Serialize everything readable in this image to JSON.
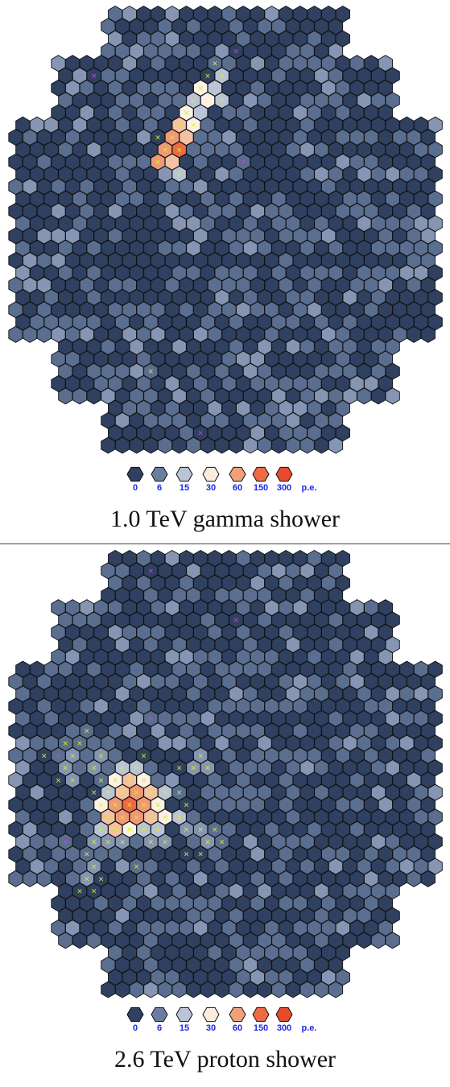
{
  "colors": {
    "scale": [
      "#2f4060",
      "#5a6e90",
      "#8595b3",
      "#b9c4d6",
      "#fbf1e5",
      "#f4c2a3",
      "#ef9a74",
      "#ee6a44",
      "#e84a2c"
    ],
    "cell_stroke": "#111111",
    "mark_green": "#d8f02a",
    "mark_magenta": "#d040e0"
  },
  "panels": [
    {
      "title": "1.0 TeV gamma shower",
      "legend": {
        "labels": [
          "0",
          "6",
          "15",
          "30",
          "60",
          "150",
          "300"
        ],
        "unit": "p.e.",
        "swatch_colors": [
          "#2f4060",
          "#6a7fa0",
          "#b9c4d6",
          "#fbecdf",
          "#f0a07a",
          "#ee6a44",
          "#e84a2c"
        ]
      },
      "hotspots": [
        {
          "q": 14,
          "r": 5,
          "level": 3
        },
        {
          "q": 13,
          "r": 6,
          "level": 4
        },
        {
          "q": 14,
          "r": 6,
          "level": 3
        },
        {
          "q": 12,
          "r": 7,
          "level": 3
        },
        {
          "q": 13,
          "r": 7,
          "level": 4
        },
        {
          "q": 14,
          "r": 7,
          "level": 3
        },
        {
          "q": 12,
          "r": 8,
          "level": 4
        },
        {
          "q": 13,
          "r": 8,
          "level": 3
        },
        {
          "q": 11,
          "r": 9,
          "level": 5
        },
        {
          "q": 12,
          "r": 9,
          "level": 4
        },
        {
          "q": 11,
          "r": 10,
          "level": 6
        },
        {
          "q": 12,
          "r": 10,
          "level": 5
        },
        {
          "q": 10,
          "r": 11,
          "level": 6
        },
        {
          "q": 11,
          "r": 11,
          "level": 7
        },
        {
          "q": 10,
          "r": 12,
          "level": 6
        },
        {
          "q": 11,
          "r": 12,
          "level": 5
        },
        {
          "q": 11,
          "r": 13,
          "level": 3
        }
      ],
      "marks_green": [
        [
          14,
          4
        ],
        [
          13,
          5
        ],
        [
          14,
          5
        ],
        [
          13,
          6
        ],
        [
          12,
          7
        ],
        [
          14,
          7
        ],
        [
          12,
          8
        ],
        [
          11,
          9
        ],
        [
          12,
          9
        ],
        [
          10,
          10
        ],
        [
          11,
          10
        ],
        [
          10,
          11
        ],
        [
          11,
          11
        ],
        [
          10,
          12
        ],
        [
          11,
          13
        ],
        [
          9,
          29
        ]
      ],
      "marks_magenta": [
        [
          5,
          5
        ],
        [
          15,
          3
        ],
        [
          16,
          12
        ],
        [
          13,
          34
        ]
      ]
    },
    {
      "title": "2.6 TeV proton shower",
      "legend": {
        "labels": [
          "0",
          "6",
          "15",
          "30",
          "60",
          "150",
          "300"
        ],
        "unit": "p.e.",
        "swatch_colors": [
          "#2f4060",
          "#6a7fa0",
          "#b9c4d6",
          "#fbecdf",
          "#f0a07a",
          "#ee6a44",
          "#e84a2c"
        ]
      },
      "hotspots": [
        {
          "q": 7,
          "r": 17,
          "level": 3
        },
        {
          "q": 8,
          "r": 17,
          "level": 3
        },
        {
          "q": 7,
          "r": 18,
          "level": 4
        },
        {
          "q": 8,
          "r": 18,
          "level": 5
        },
        {
          "q": 9,
          "r": 18,
          "level": 4
        },
        {
          "q": 6,
          "r": 19,
          "level": 3
        },
        {
          "q": 7,
          "r": 19,
          "level": 5
        },
        {
          "q": 8,
          "r": 19,
          "level": 6
        },
        {
          "q": 9,
          "r": 19,
          "level": 5
        },
        {
          "q": 10,
          "r": 19,
          "level": 3
        },
        {
          "q": 6,
          "r": 20,
          "level": 4
        },
        {
          "q": 7,
          "r": 20,
          "level": 6
        },
        {
          "q": 8,
          "r": 20,
          "level": 7
        },
        {
          "q": 9,
          "r": 20,
          "level": 6
        },
        {
          "q": 10,
          "r": 20,
          "level": 4
        },
        {
          "q": 6,
          "r": 21,
          "level": 5
        },
        {
          "q": 7,
          "r": 21,
          "level": 6
        },
        {
          "q": 8,
          "r": 21,
          "level": 6
        },
        {
          "q": 9,
          "r": 21,
          "level": 5
        },
        {
          "q": 10,
          "r": 21,
          "level": 4
        },
        {
          "q": 11,
          "r": 21,
          "level": 3
        },
        {
          "q": 6,
          "r": 22,
          "level": 3
        },
        {
          "q": 7,
          "r": 22,
          "level": 5
        },
        {
          "q": 8,
          "r": 22,
          "level": 4
        },
        {
          "q": 9,
          "r": 22,
          "level": 3
        },
        {
          "q": 10,
          "r": 22,
          "level": 3
        },
        {
          "q": 6,
          "r": 16,
          "level": 2
        },
        {
          "q": 5,
          "r": 17,
          "level": 2
        },
        {
          "q": 11,
          "r": 18,
          "level": 2
        },
        {
          "q": 12,
          "r": 17,
          "level": 2
        },
        {
          "q": 13,
          "r": 16,
          "level": 2
        },
        {
          "q": 13,
          "r": 17,
          "level": 2
        },
        {
          "q": 5,
          "r": 23,
          "level": 2
        },
        {
          "q": 6,
          "r": 23,
          "level": 2
        },
        {
          "q": 7,
          "r": 23,
          "level": 2
        },
        {
          "q": 9,
          "r": 23,
          "level": 2
        },
        {
          "q": 10,
          "r": 23,
          "level": 2
        },
        {
          "q": 12,
          "r": 22,
          "level": 2
        },
        {
          "q": 13,
          "r": 22,
          "level": 2
        },
        {
          "q": 13,
          "r": 23,
          "level": 2
        },
        {
          "q": 4,
          "r": 16,
          "level": 2
        },
        {
          "q": 4,
          "r": 18,
          "level": 2
        },
        {
          "q": 3,
          "r": 17,
          "level": 2
        },
        {
          "q": 5,
          "r": 25,
          "level": 2
        },
        {
          "q": 5,
          "r": 26,
          "level": 2
        }
      ],
      "marks_green": [
        [
          7,
          17
        ],
        [
          8,
          17
        ],
        [
          7,
          18
        ],
        [
          8,
          18
        ],
        [
          9,
          18
        ],
        [
          6,
          19
        ],
        [
          7,
          19
        ],
        [
          8,
          19
        ],
        [
          9,
          19
        ],
        [
          10,
          19
        ],
        [
          6,
          20
        ],
        [
          7,
          20
        ],
        [
          8,
          20
        ],
        [
          9,
          20
        ],
        [
          10,
          20
        ],
        [
          6,
          21
        ],
        [
          7,
          21
        ],
        [
          8,
          21
        ],
        [
          9,
          21
        ],
        [
          10,
          21
        ],
        [
          11,
          21
        ],
        [
          6,
          22
        ],
        [
          7,
          22
        ],
        [
          8,
          22
        ],
        [
          9,
          22
        ],
        [
          10,
          22
        ],
        [
          5,
          23
        ],
        [
          6,
          23
        ],
        [
          7,
          23
        ],
        [
          9,
          23
        ],
        [
          10,
          23
        ],
        [
          12,
          22
        ],
        [
          13,
          22
        ],
        [
          13,
          23
        ],
        [
          14,
          22
        ],
        [
          14,
          23
        ],
        [
          5,
          24
        ],
        [
          5,
          25
        ],
        [
          5,
          26
        ],
        [
          5,
          27
        ],
        [
          4,
          27
        ],
        [
          6,
          26
        ],
        [
          8,
          25
        ],
        [
          12,
          24
        ],
        [
          13,
          24
        ],
        [
          11,
          17
        ],
        [
          12,
          17
        ],
        [
          13,
          16
        ],
        [
          13,
          17
        ],
        [
          6,
          16
        ],
        [
          5,
          17
        ],
        [
          4,
          15
        ],
        [
          4,
          16
        ],
        [
          4,
          18
        ],
        [
          3,
          17
        ],
        [
          3,
          15
        ],
        [
          5,
          14
        ],
        [
          5,
          19
        ],
        [
          6,
          18
        ],
        [
          3,
          18
        ],
        [
          2,
          16
        ],
        [
          9,
          16
        ],
        [
          11,
          19
        ],
        [
          12,
          20
        ]
      ],
      "marks_magenta": [
        [
          9,
          1
        ],
        [
          15,
          5
        ],
        [
          3,
          16
        ],
        [
          3,
          23
        ],
        [
          9,
          13
        ]
      ]
    }
  ]
}
